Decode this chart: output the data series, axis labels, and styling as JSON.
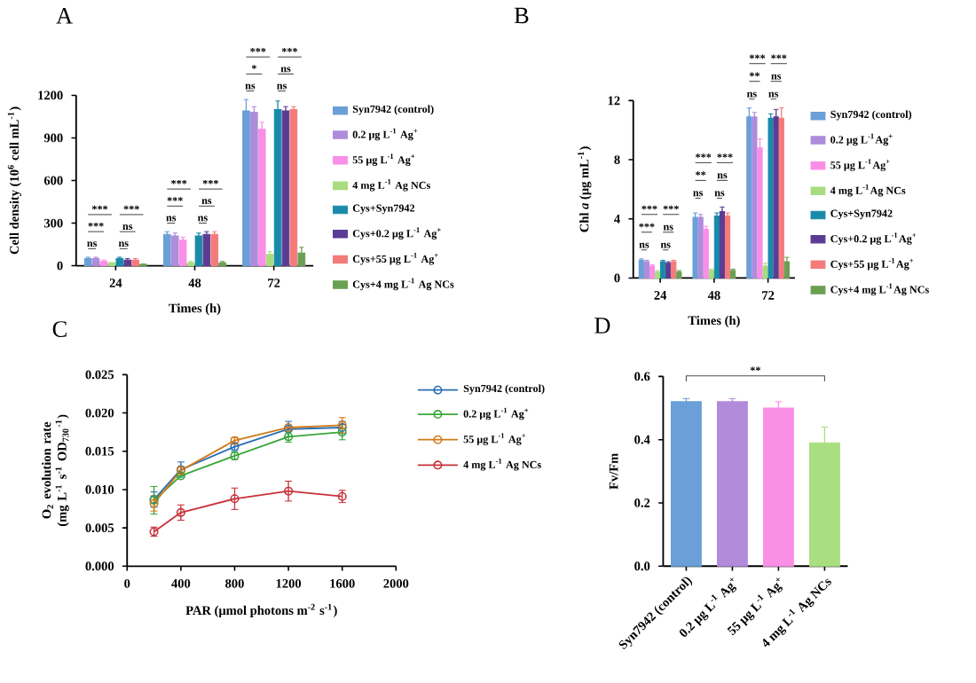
{
  "chart_data": [
    {
      "type": "bar",
      "title": "A",
      "xlabel": "Times (h)",
      "ylabel": "Cell density (10$^{6}$ cell mL$^{-1}$)",
      "categories": [
        "24",
        "48",
        "72"
      ],
      "ylim": [
        0,
        1200
      ],
      "yticks": [
        0,
        300,
        600,
        900,
        1200
      ],
      "legend": "right",
      "series": [
        {
          "name": "Syn7942 (control)",
          "color": "#6a9fd8",
          "values": [
            50,
            220,
            1090
          ],
          "errors": [
            10,
            20,
            80
          ]
        },
        {
          "name": "0.2 μg L$^{-1}$ Ag$^{+}$",
          "color": "#ad8ddb",
          "values": [
            50,
            210,
            1080
          ],
          "errors": [
            10,
            20,
            40
          ]
        },
        {
          "name": "55 μg L$^{-1}$ Ag$^{+}$",
          "color": "#f98ee8",
          "values": [
            30,
            180,
            960
          ],
          "errors": [
            10,
            20,
            50
          ]
        },
        {
          "name": "4 mg L$^{-1}$ Ag NCs",
          "color": "#a8dc7f",
          "values": [
            20,
            20,
            80
          ],
          "errors": [
            0,
            10,
            20
          ]
        },
        {
          "name": "Cys+Syn7942",
          "color": "#1a8aa8",
          "values": [
            50,
            210,
            1100
          ],
          "errors": [
            10,
            20,
            60
          ]
        },
        {
          "name": "Cys+0.2 μg L$^{-1}$ Ag$^{+}$",
          "color": "#5b3b93",
          "values": [
            40,
            220,
            1090
          ],
          "errors": [
            10,
            20,
            30
          ]
        },
        {
          "name": "Cys+55 μg L$^{-1}$ Ag$^{+}$",
          "color": "#f47b7b",
          "values": [
            40,
            220,
            1100
          ],
          "errors": [
            10,
            20,
            20
          ]
        },
        {
          "name": "Cys+4 mg L$^{-1}$ Ag NCs",
          "color": "#6aa053",
          "values": [
            10,
            20,
            90
          ],
          "errors": [
            0,
            10,
            40
          ]
        }
      ],
      "annotations": [
        "***",
        "***",
        "ns",
        "***",
        "ns",
        "ns",
        "***",
        "***",
        "ns",
        "***",
        "ns",
        "ns",
        "***",
        "*",
        "ns",
        "***",
        "ns",
        "ns"
      ]
    },
    {
      "type": "bar",
      "title": "B",
      "xlabel": "Times (h)",
      "ylabel": "Chl *a* (μg mL$^{-1}$)",
      "categories": [
        "24",
        "48",
        "72"
      ],
      "ylim": [
        0,
        12
      ],
      "yticks": [
        0,
        4,
        8,
        12
      ],
      "legend": "right",
      "series": [
        {
          "name": "Syn7942 (control)",
          "color": "#6a9fd8",
          "values": [
            1.2,
            4.1,
            10.9
          ],
          "errors": [
            0.1,
            0.3,
            0.6
          ]
        },
        {
          "name": "0.2 μg L$^{-1}$Ag$^{+}$",
          "color": "#ad8ddb",
          "values": [
            1.1,
            4.1,
            10.9
          ],
          "errors": [
            0.1,
            0.2,
            0.3
          ]
        },
        {
          "name": "55 μg L$^{-1}$Ag$^{+}$",
          "color": "#f98ee8",
          "values": [
            0.8,
            3.3,
            8.8
          ],
          "errors": [
            0.1,
            0.2,
            0.6
          ]
        },
        {
          "name": "4 mg L$^{-1}$Ag NCs",
          "color": "#a8dc7f",
          "values": [
            0.4,
            0.5,
            0.8
          ],
          "errors": [
            0.1,
            0.1,
            0.2
          ]
        },
        {
          "name": "Cys+Syn7942",
          "color": "#1a8aa8",
          "values": [
            1.1,
            4.2,
            10.8
          ],
          "errors": [
            0.1,
            0.2,
            0.3
          ]
        },
        {
          "name": "Cys+0.2 μg L$^{-1}$Ag$^{+}$",
          "color": "#5b3b93",
          "values": [
            1.0,
            4.5,
            10.9
          ],
          "errors": [
            0.1,
            0.3,
            0.5
          ]
        },
        {
          "name": "Cys+55 μg L$^{-1}$Ag$^{+}$",
          "color": "#f47b7b",
          "values": [
            1.1,
            4.2,
            10.8
          ],
          "errors": [
            0.1,
            0.2,
            0.7
          ]
        },
        {
          "name": "Cys+4 mg L$^{-1}$Ag NCs",
          "color": "#6aa053",
          "values": [
            0.4,
            0.5,
            1.1
          ],
          "errors": [
            0.1,
            0.1,
            0.3
          ]
        }
      ],
      "annotations": [
        "***",
        "***",
        "ns",
        "***",
        "ns",
        "ns",
        "***",
        "**",
        "ns",
        "***",
        "ns",
        "ns",
        "***",
        "**",
        "ns",
        "***",
        "ns",
        "ns"
      ]
    },
    {
      "type": "line",
      "title": "C",
      "xlabel": "PAR (μmol photons m$^{-2}$ s$^{-1}$)",
      "ylabel": "O$_{2}$ evolution rate (mg L$^{-1}$ s$^{-1}$ OD$_{730}$$^{-1}$)",
      "x": [
        200,
        400,
        800,
        1200,
        1600
      ],
      "xlim": [
        0,
        2000
      ],
      "xticks": [
        0,
        400,
        800,
        1200,
        1600,
        2000
      ],
      "ylim": [
        0,
        0.025
      ],
      "yticks": [
        {
          "value": 0,
          "label": "0.000"
        },
        0.005,
        {
          "value": 0.01,
          "label": "0.010"
        },
        0.015,
        {
          "value": 0.02,
          "label": "0.020"
        },
        0.025
      ],
      "legend": "right",
      "marker": "circle",
      "line_style": "solid",
      "series": [
        {
          "name": "Syn7942 (control)",
          "color": "#2a6eb5",
          "values": [
            0.0087,
            0.0126,
            0.0156,
            0.0179,
            0.0181
          ],
          "errors": [
            0.001,
            0.001,
            0.0005,
            0.001,
            0.0008
          ]
        },
        {
          "name": "0.2 μg L$^{-1}$ Ag$^{+}$",
          "color": "#3aa63a",
          "values": [
            0.0086,
            0.0118,
            0.0144,
            0.0169,
            0.0175
          ],
          "errors": [
            0.0018,
            null,
            0.0005,
            0.0007,
            0.001
          ]
        },
        {
          "name": "55 μg L$^{-1}$ Ag$^{+}$",
          "color": "#d07a1a",
          "values": [
            0.0082,
            0.0125,
            0.0164,
            0.0181,
            0.0184
          ],
          "errors": [
            0.001,
            0.0005,
            0.0004,
            null,
            0.001
          ]
        },
        {
          "name": "4 mg L$^{-1}$ Ag NCs",
          "color": "#c8323a",
          "values": [
            0.0045,
            0.007,
            0.0088,
            0.0098,
            0.0091
          ],
          "errors": [
            0.0006,
            0.001,
            0.0014,
            0.0013,
            0.0008
          ]
        }
      ]
    },
    {
      "type": "bar",
      "title": "D",
      "ylabel": "Fv/Fm",
      "categories": [
        "Syn7942 (control)",
        "0.2 μg L$^{-1}$ Ag$^{+}$",
        "55 μg L$^{-1}$ Ag$^{+}$",
        "4 mg L$^{-1}$ Ag NCs"
      ],
      "values": [
        0.52,
        0.52,
        0.5,
        0.39
      ],
      "errors": [
        0.01,
        0.01,
        0.02,
        0.05
      ],
      "colors": [
        "#6a9fd8",
        "#b18bd9",
        "#fa8fe6",
        "#a9df80"
      ],
      "ylim": [
        0,
        0.6
      ],
      "yticks": [
        {
          "value": 0,
          "label": "0.0"
        },
        0.2,
        0.4,
        0.6
      ],
      "annotations": [
        "**"
      ]
    }
  ]
}
